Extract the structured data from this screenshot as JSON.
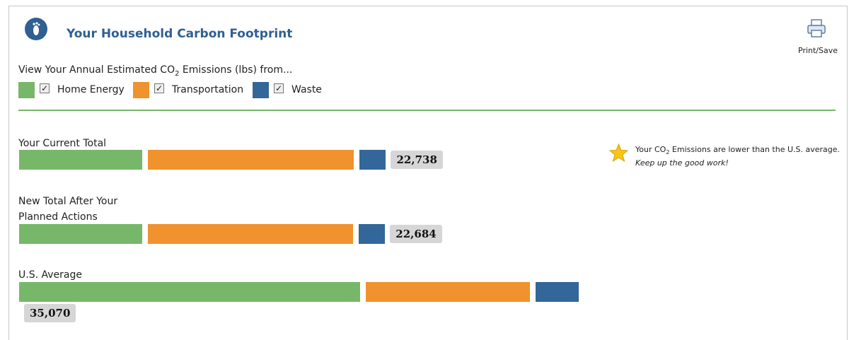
{
  "header": {
    "title": "Your Household Carbon Footprint",
    "print": "Print/Save"
  },
  "chart_data": {
    "type": "bar",
    "orientation": "horizontal",
    "stacked": true,
    "subtitle": {
      "text": "View Your Annual Estimated CO",
      "subscript": "2",
      "rest": " Emissions (lbs) from..."
    },
    "categories": [
      "Your Current Total",
      "New Total After Your Planned Actions",
      "U.S. Average"
    ],
    "series": [
      {
        "name": "Home Energy",
        "color": "#77b76a",
        "values": [
          7865,
          7865,
          21810
        ]
      },
      {
        "name": "Transportation",
        "color": "#f0922e",
        "values": [
          13170,
          13140,
          10500
        ]
      },
      {
        "name": "Waste",
        "color": "#336699",
        "values": [
          1703,
          1679,
          2760
        ]
      }
    ],
    "totals": [
      22738,
      22684,
      35070
    ],
    "total_labels": [
      "22,738",
      "22,684",
      "35,070"
    ]
  },
  "note": {
    "text": "Your CO",
    "subscript": "2",
    "rest": " Emissions are lower than the U.S. average.",
    "line2": "Keep up the good work!"
  }
}
